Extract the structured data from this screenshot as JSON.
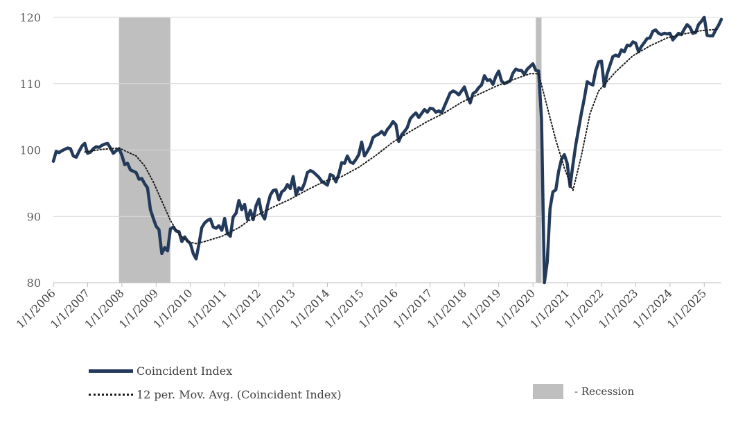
{
  "chart_data": {
    "type": "line",
    "title": "",
    "xlabel": "",
    "ylabel": "",
    "ylim": [
      80,
      120
    ],
    "yticks": [
      80,
      90,
      100,
      110,
      120
    ],
    "x_ticks": [
      "1/1/2006",
      "1/1/2007",
      "1/1/2008",
      "1/1/2009",
      "1/1/2010",
      "1/1/2011",
      "1/1/2012",
      "1/1/2013",
      "1/1/2014",
      "1/1/2015",
      "1/1/2016",
      "1/1/2017",
      "1/1/2018",
      "1/1/2019",
      "1/1/2020",
      "1/1/2021",
      "1/1/2022",
      "1/1/2023",
      "1/1/2024",
      "1/1/2025"
    ],
    "grid": "horizontal",
    "legend_position": "bottom",
    "colors": {
      "series": "#243a5a",
      "moving_average": "#1a1a1a",
      "recession": "#bfbfbf",
      "grid": "#d9d9d9"
    },
    "recessions": [
      {
        "start": "2007-12",
        "end": "2009-06"
      },
      {
        "start": "2020-02",
        "end": "2020-04"
      }
    ],
    "series": [
      {
        "name": "Coincident Index",
        "points": [
          [
            "2006-01",
            98.3
          ],
          [
            "2006-02",
            99.8
          ],
          [
            "2006-03",
            99.6
          ],
          [
            "2006-04",
            99.9
          ],
          [
            "2006-05",
            100.1
          ],
          [
            "2006-06",
            100.3
          ],
          [
            "2006-07",
            100.2
          ],
          [
            "2006-08",
            99.1
          ],
          [
            "2006-09",
            98.9
          ],
          [
            "2006-10",
            99.8
          ],
          [
            "2006-11",
            100.6
          ],
          [
            "2006-12",
            101.0
          ],
          [
            "2007-01",
            99.5
          ],
          [
            "2007-02",
            99.7
          ],
          [
            "2007-03",
            100.2
          ],
          [
            "2007-04",
            100.5
          ],
          [
            "2007-05",
            100.4
          ],
          [
            "2007-06",
            100.7
          ],
          [
            "2007-07",
            100.9
          ],
          [
            "2007-08",
            101.0
          ],
          [
            "2007-09",
            100.3
          ],
          [
            "2007-10",
            99.5
          ],
          [
            "2007-11",
            99.9
          ],
          [
            "2007-12",
            100.2
          ],
          [
            "2008-01",
            99.2
          ],
          [
            "2008-02",
            97.8
          ],
          [
            "2008-03",
            98.0
          ],
          [
            "2008-04",
            97.0
          ],
          [
            "2008-05",
            96.8
          ],
          [
            "2008-06",
            96.6
          ],
          [
            "2008-07",
            95.6
          ],
          [
            "2008-08",
            95.7
          ],
          [
            "2008-09",
            94.9
          ],
          [
            "2008-10",
            94.3
          ],
          [
            "2008-11",
            91.0
          ],
          [
            "2008-12",
            89.7
          ],
          [
            "2009-01",
            88.5
          ],
          [
            "2009-02",
            88.0
          ],
          [
            "2009-03",
            84.4
          ],
          [
            "2009-04",
            85.3
          ],
          [
            "2009-05",
            84.8
          ],
          [
            "2009-06",
            88.1
          ],
          [
            "2009-07",
            88.4
          ],
          [
            "2009-08",
            87.8
          ],
          [
            "2009-09",
            87.7
          ],
          [
            "2009-10",
            86.2
          ],
          [
            "2009-11",
            86.9
          ],
          [
            "2009-12",
            86.3
          ],
          [
            "2010-01",
            85.9
          ],
          [
            "2010-02",
            84.4
          ],
          [
            "2010-03",
            83.6
          ],
          [
            "2010-04",
            85.8
          ],
          [
            "2010-05",
            88.3
          ],
          [
            "2010-06",
            89.0
          ],
          [
            "2010-07",
            89.4
          ],
          [
            "2010-08",
            89.6
          ],
          [
            "2010-09",
            88.4
          ],
          [
            "2010-10",
            88.2
          ],
          [
            "2010-11",
            88.6
          ],
          [
            "2010-12",
            87.9
          ],
          [
            "2011-01",
            89.7
          ],
          [
            "2011-02",
            87.4
          ],
          [
            "2011-03",
            87.0
          ],
          [
            "2011-04",
            89.9
          ],
          [
            "2011-05",
            90.5
          ],
          [
            "2011-06",
            92.4
          ],
          [
            "2011-07",
            91.0
          ],
          [
            "2011-08",
            91.8
          ],
          [
            "2011-09",
            89.5
          ],
          [
            "2011-10",
            90.9
          ],
          [
            "2011-11",
            89.5
          ],
          [
            "2011-12",
            91.6
          ],
          [
            "2012-01",
            92.6
          ],
          [
            "2012-02",
            90.4
          ],
          [
            "2012-03",
            89.6
          ],
          [
            "2012-04",
            91.6
          ],
          [
            "2012-05",
            93.2
          ],
          [
            "2012-06",
            93.9
          ],
          [
            "2012-07",
            94.0
          ],
          [
            "2012-08",
            92.5
          ],
          [
            "2012-09",
            93.7
          ],
          [
            "2012-10",
            94.0
          ],
          [
            "2012-11",
            94.8
          ],
          [
            "2012-12",
            94.2
          ],
          [
            "2013-01",
            96.0
          ],
          [
            "2013-02",
            93.2
          ],
          [
            "2013-03",
            94.3
          ],
          [
            "2013-04",
            94.0
          ],
          [
            "2013-05",
            95.0
          ],
          [
            "2013-06",
            96.6
          ],
          [
            "2013-07",
            96.9
          ],
          [
            "2013-08",
            96.7
          ],
          [
            "2013-09",
            96.3
          ],
          [
            "2013-10",
            95.9
          ],
          [
            "2013-11",
            95.3
          ],
          [
            "2013-12",
            95.0
          ],
          [
            "2014-01",
            94.7
          ],
          [
            "2014-02",
            96.3
          ],
          [
            "2014-03",
            96.1
          ],
          [
            "2014-04",
            95.2
          ],
          [
            "2014-05",
            96.4
          ],
          [
            "2014-06",
            98.1
          ],
          [
            "2014-07",
            98.0
          ],
          [
            "2014-08",
            99.1
          ],
          [
            "2014-09",
            98.2
          ],
          [
            "2014-10",
            98.0
          ],
          [
            "2014-11",
            98.6
          ],
          [
            "2014-12",
            99.3
          ],
          [
            "2015-01",
            101.2
          ],
          [
            "2015-02",
            99.1
          ],
          [
            "2015-03",
            99.8
          ],
          [
            "2015-04",
            100.6
          ],
          [
            "2015-05",
            101.9
          ],
          [
            "2015-06",
            102.2
          ],
          [
            "2015-07",
            102.4
          ],
          [
            "2015-08",
            102.8
          ],
          [
            "2015-09",
            102.3
          ],
          [
            "2015-10",
            103.1
          ],
          [
            "2015-11",
            103.6
          ],
          [
            "2015-12",
            104.3
          ],
          [
            "2016-01",
            103.8
          ],
          [
            "2016-02",
            101.3
          ],
          [
            "2016-03",
            102.3
          ],
          [
            "2016-04",
            102.8
          ],
          [
            "2016-05",
            103.4
          ],
          [
            "2016-06",
            104.7
          ],
          [
            "2016-07",
            105.2
          ],
          [
            "2016-08",
            105.6
          ],
          [
            "2016-09",
            104.9
          ],
          [
            "2016-10",
            105.5
          ],
          [
            "2016-11",
            106.1
          ],
          [
            "2016-12",
            105.7
          ],
          [
            "2017-01",
            106.3
          ],
          [
            "2017-02",
            106.2
          ],
          [
            "2017-03",
            105.7
          ],
          [
            "2017-04",
            105.9
          ],
          [
            "2017-05",
            105.6
          ],
          [
            "2017-06",
            106.6
          ],
          [
            "2017-07",
            107.6
          ],
          [
            "2017-08",
            108.6
          ],
          [
            "2017-09",
            108.9
          ],
          [
            "2017-10",
            108.7
          ],
          [
            "2017-11",
            108.3
          ],
          [
            "2017-12",
            108.9
          ],
          [
            "2018-01",
            109.5
          ],
          [
            "2018-02",
            108.1
          ],
          [
            "2018-03",
            107.1
          ],
          [
            "2018-04",
            108.5
          ],
          [
            "2018-05",
            108.8
          ],
          [
            "2018-06",
            109.4
          ],
          [
            "2018-07",
            109.8
          ],
          [
            "2018-08",
            111.2
          ],
          [
            "2018-09",
            110.5
          ],
          [
            "2018-10",
            110.6
          ],
          [
            "2018-11",
            109.9
          ],
          [
            "2018-12",
            111.1
          ],
          [
            "2019-01",
            111.9
          ],
          [
            "2019-02",
            110.4
          ],
          [
            "2019-03",
            110.0
          ],
          [
            "2019-04",
            110.2
          ],
          [
            "2019-05",
            110.4
          ],
          [
            "2019-06",
            111.6
          ],
          [
            "2019-07",
            112.2
          ],
          [
            "2019-08",
            112.0
          ],
          [
            "2019-09",
            112.0
          ],
          [
            "2019-10",
            111.4
          ],
          [
            "2019-11",
            112.2
          ],
          [
            "2019-12",
            112.6
          ],
          [
            "2020-01",
            113.0
          ],
          [
            "2020-02",
            112.0
          ],
          [
            "2020-03",
            111.9
          ],
          [
            "2020-04",
            104.6
          ],
          [
            "2020-05",
            80.0
          ],
          [
            "2020-06",
            83.1
          ],
          [
            "2020-07",
            91.2
          ],
          [
            "2020-08",
            93.7
          ],
          [
            "2020-09",
            94.0
          ],
          [
            "2020-10",
            96.8
          ],
          [
            "2020-11",
            98.6
          ],
          [
            "2020-12",
            99.3
          ],
          [
            "2021-01",
            98.0
          ],
          [
            "2021-02",
            94.5
          ],
          [
            "2021-03",
            97.8
          ],
          [
            "2021-04",
            100.8
          ],
          [
            "2021-05",
            103.2
          ],
          [
            "2021-06",
            105.6
          ],
          [
            "2021-07",
            107.8
          ],
          [
            "2021-08",
            110.3
          ],
          [
            "2021-09",
            110.0
          ],
          [
            "2021-10",
            109.8
          ],
          [
            "2021-11",
            112.0
          ],
          [
            "2021-12",
            113.3
          ],
          [
            "2022-01",
            113.4
          ],
          [
            "2022-02",
            109.6
          ],
          [
            "2022-03",
            111.5
          ],
          [
            "2022-04",
            112.8
          ],
          [
            "2022-05",
            114.1
          ],
          [
            "2022-06",
            114.3
          ],
          [
            "2022-07",
            114.1
          ],
          [
            "2022-08",
            115.1
          ],
          [
            "2022-09",
            114.8
          ],
          [
            "2022-10",
            115.8
          ],
          [
            "2022-11",
            115.7
          ],
          [
            "2022-12",
            116.3
          ],
          [
            "2023-01",
            116.1
          ],
          [
            "2023-02",
            114.8
          ],
          [
            "2023-03",
            115.6
          ],
          [
            "2023-04",
            116.2
          ],
          [
            "2023-05",
            116.8
          ],
          [
            "2023-06",
            116.9
          ],
          [
            "2023-07",
            117.9
          ],
          [
            "2023-08",
            118.1
          ],
          [
            "2023-09",
            117.6
          ],
          [
            "2023-10",
            117.4
          ],
          [
            "2023-11",
            117.6
          ],
          [
            "2023-12",
            117.5
          ],
          [
            "2024-01",
            117.6
          ],
          [
            "2024-02",
            116.6
          ],
          [
            "2024-03",
            117.1
          ],
          [
            "2024-04",
            117.6
          ],
          [
            "2024-05",
            117.4
          ],
          [
            "2024-06",
            118.2
          ],
          [
            "2024-07",
            118.9
          ],
          [
            "2024-08",
            118.5
          ],
          [
            "2024-09",
            117.6
          ],
          [
            "2024-10",
            117.7
          ],
          [
            "2024-11",
            118.9
          ],
          [
            "2024-12",
            119.4
          ],
          [
            "2025-01",
            120.0
          ],
          [
            "2025-02",
            117.3
          ],
          [
            "2025-03",
            117.2
          ],
          [
            "2025-04",
            117.2
          ],
          [
            "2025-05",
            118.1
          ],
          [
            "2025-06",
            118.8
          ],
          [
            "2025-07",
            119.7
          ]
        ]
      },
      {
        "name": "12 per. Mov. Avg. (Coincident Index)",
        "points": [
          [
            "2006-12",
            99.7
          ],
          [
            "2007-06",
            100.1
          ],
          [
            "2007-12",
            100.3
          ],
          [
            "2008-06",
            99.1
          ],
          [
            "2008-09",
            97.6
          ],
          [
            "2008-12",
            95.2
          ],
          [
            "2009-03",
            92.3
          ],
          [
            "2009-06",
            89.4
          ],
          [
            "2009-09",
            87.3
          ],
          [
            "2009-12",
            86.2
          ],
          [
            "2010-03",
            85.9
          ],
          [
            "2010-06",
            86.2
          ],
          [
            "2010-12",
            87.0
          ],
          [
            "2011-06",
            88.3
          ],
          [
            "2011-12",
            90.1
          ],
          [
            "2012-06",
            91.4
          ],
          [
            "2012-12",
            92.6
          ],
          [
            "2013-06",
            94.0
          ],
          [
            "2013-12",
            95.3
          ],
          [
            "2014-06",
            96.0
          ],
          [
            "2014-12",
            97.4
          ],
          [
            "2015-06",
            99.2
          ],
          [
            "2015-12",
            101.2
          ],
          [
            "2016-06",
            102.8
          ],
          [
            "2016-12",
            104.3
          ],
          [
            "2017-06",
            105.6
          ],
          [
            "2017-12",
            107.2
          ],
          [
            "2018-06",
            108.4
          ],
          [
            "2018-12",
            109.6
          ],
          [
            "2019-06",
            110.6
          ],
          [
            "2019-12",
            111.5
          ],
          [
            "2020-03",
            111.5
          ],
          [
            "2020-06",
            106.5
          ],
          [
            "2020-09",
            101.5
          ],
          [
            "2020-12",
            97.3
          ],
          [
            "2021-03",
            93.9
          ],
          [
            "2021-06",
            99.2
          ],
          [
            "2021-09",
            105.5
          ],
          [
            "2021-12",
            108.9
          ],
          [
            "2022-06",
            111.8
          ],
          [
            "2022-12",
            114.2
          ],
          [
            "2023-06",
            115.7
          ],
          [
            "2023-12",
            116.9
          ],
          [
            "2024-06",
            117.5
          ],
          [
            "2024-12",
            118.0
          ],
          [
            "2025-06",
            118.2
          ]
        ]
      }
    ],
    "legend": {
      "solid_label": "Coincident Index",
      "dotted_label": "12 per. Mov. Avg. (Coincident Index)",
      "recession_label": "- Recession"
    }
  }
}
